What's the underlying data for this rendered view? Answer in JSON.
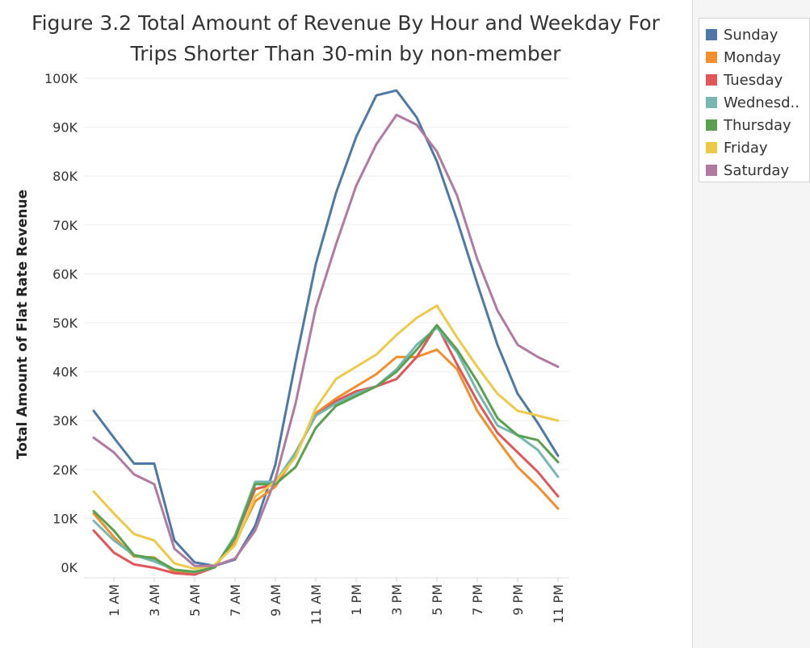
{
  "chart_data": {
    "type": "line",
    "title_lines": [
      "Figure 3.2 Total Amount of Revenue By Hour and Weekday For",
      "Trips Shorter Than 30-min by non-member"
    ],
    "ylabel": "Total Amount of Flat Rate Revenue",
    "xlabel": "",
    "ylim": [
      0,
      100000
    ],
    "y_ticks": [
      0,
      10000,
      20000,
      30000,
      40000,
      50000,
      60000,
      70000,
      80000,
      90000,
      100000
    ],
    "y_tick_labels": [
      "0K",
      "10K",
      "20K",
      "30K",
      "40K",
      "50K",
      "60K",
      "70K",
      "80K",
      "90K",
      "100K"
    ],
    "x": [
      "12 AM",
      "1 AM",
      "2 AM",
      "3 AM",
      "4 AM",
      "5 AM",
      "6 AM",
      "7 AM",
      "8 AM",
      "9 AM",
      "10 AM",
      "11 AM",
      "12 PM",
      "1 PM",
      "2 PM",
      "3 PM",
      "4 PM",
      "5 PM",
      "6 PM",
      "7 PM",
      "8 PM",
      "9 PM",
      "10 PM",
      "11 PM"
    ],
    "x_tick_labels": [
      "1 AM",
      "3 AM",
      "5 AM",
      "7 AM",
      "9 AM",
      "11 AM",
      "1 PM",
      "3 PM",
      "5 PM",
      "7 PM",
      "9 PM",
      "11 PM"
    ],
    "x_tick_hours": [
      1,
      3,
      5,
      7,
      9,
      11,
      13,
      15,
      17,
      19,
      21,
      23
    ],
    "grid": true,
    "legend_position": "right",
    "series": [
      {
        "name": "Sunday",
        "color": "#4e79a7",
        "values": [
          32000,
          26500,
          21200,
          21200,
          5500,
          1000,
          300,
          1600,
          8500,
          21000,
          42000,
          62000,
          76500,
          88000,
          96500,
          97500,
          92000,
          83000,
          71000,
          58000,
          45500,
          35500,
          29500,
          22800
        ]
      },
      {
        "name": "Monday",
        "color": "#f28e2b",
        "values": [
          11000,
          6200,
          2200,
          2000,
          -1000,
          -1200,
          300,
          5000,
          13500,
          16500,
          23000,
          31500,
          34500,
          37000,
          39500,
          43000,
          43000,
          44500,
          40500,
          32000,
          26000,
          20500,
          16500,
          12000
        ]
      },
      {
        "name": "Tuesday",
        "color": "#e15759",
        "values": [
          7500,
          3000,
          600,
          -100,
          -1200,
          -1500,
          0,
          6000,
          16000,
          17000,
          23500,
          31000,
          34000,
          36000,
          37000,
          38500,
          43000,
          49500,
          41500,
          34000,
          27500,
          23500,
          19500,
          14500
        ]
      },
      {
        "name": "Wednesday",
        "color": "#76b7b2",
        "values": [
          9500,
          5500,
          2500,
          1200,
          -500,
          -1000,
          0,
          6500,
          17500,
          17500,
          23500,
          31000,
          33500,
          35500,
          37000,
          40500,
          45500,
          49000,
          44000,
          36000,
          29000,
          27000,
          24000,
          18500
        ]
      },
      {
        "name": "Thursday",
        "color": "#59a14f",
        "values": [
          11500,
          7500,
          2500,
          1800,
          -500,
          -900,
          0,
          6000,
          17000,
          17000,
          20500,
          28500,
          33000,
          35000,
          37000,
          40000,
          44500,
          49500,
          44500,
          38000,
          30500,
          27000,
          26000,
          21500
        ]
      },
      {
        "name": "Friday",
        "color": "#edc948",
        "values": [
          15500,
          11000,
          6800,
          5500,
          800,
          -300,
          500,
          4500,
          14500,
          17500,
          22500,
          32500,
          38500,
          41000,
          43500,
          47500,
          51000,
          53500,
          47000,
          41000,
          35500,
          32000,
          31000,
          30000
        ]
      },
      {
        "name": "Saturday",
        "color": "#b07aa1",
        "values": [
          26500,
          23500,
          19000,
          17000,
          3800,
          300,
          300,
          1800,
          7500,
          18000,
          33500,
          53000,
          66000,
          78000,
          86500,
          92500,
          90500,
          85000,
          76000,
          63000,
          52500,
          45500,
          43000,
          41000
        ]
      }
    ]
  },
  "legend_labels": [
    "Sunday",
    "Monday",
    "Tuesday",
    "Wednesd..",
    "Thursday",
    "Friday",
    "Saturday"
  ]
}
